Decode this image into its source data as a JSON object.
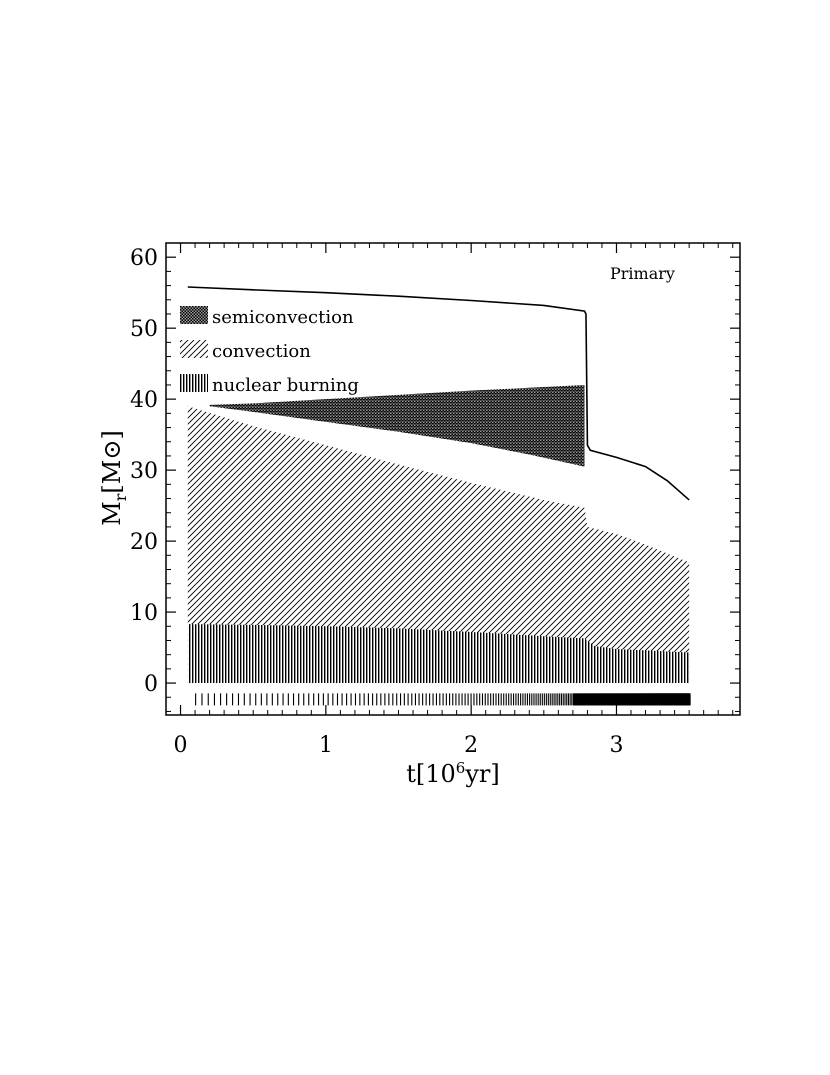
{
  "chart_data": {
    "type": "area",
    "panel_label": "Primary",
    "xlabel": {
      "base": "t[10",
      "sup": "6",
      "tail": "yr]"
    },
    "ylabel": {
      "base": "M",
      "sub": "r",
      "tail": "[M⊙]"
    },
    "xlim": [
      -0.1,
      3.85
    ],
    "ylim": [
      -4.5,
      62
    ],
    "xticks": [
      0,
      1,
      2,
      3
    ],
    "xtick_labels": [
      "0",
      "1",
      "2",
      "3"
    ],
    "yticks": [
      0,
      10,
      20,
      30,
      40,
      50,
      60
    ],
    "ytick_labels": [
      "0",
      "10",
      "20",
      "30",
      "40",
      "50",
      "60"
    ],
    "grid": false,
    "legend": {
      "placement": "top-left",
      "entries": [
        {
          "label": "semiconvection",
          "pattern": "dense-dots"
        },
        {
          "label": "convection",
          "pattern": "diagonal-hatch"
        },
        {
          "label": "nuclear burning",
          "pattern": "vertical-lines"
        }
      ]
    },
    "series": [
      {
        "key": "total_mass",
        "style": "line",
        "x": [
          0.05,
          0.5,
          1.0,
          1.5,
          2.0,
          2.5,
          2.78,
          2.79,
          2.8,
          2.82,
          3.0,
          3.2,
          3.35,
          3.5
        ],
        "y": [
          55.8,
          55.4,
          55.0,
          54.5,
          53.9,
          53.2,
          52.4,
          52.0,
          33.5,
          32.8,
          31.8,
          30.5,
          28.5,
          25.8
        ]
      },
      {
        "key": "convective_core",
        "style": "diagonal-hatch",
        "x": [
          0.05,
          0.5,
          1.0,
          1.5,
          2.0,
          2.5,
          2.78,
          2.8,
          3.0,
          3.2,
          3.5
        ],
        "y_top": [
          39.0,
          36.2,
          33.5,
          30.8,
          28.2,
          25.8,
          24.7,
          22.0,
          21.0,
          19.5,
          17.0
        ],
        "y_bottom": [
          0,
          0,
          0,
          0,
          0,
          0,
          0,
          0,
          0,
          0,
          0
        ]
      },
      {
        "key": "semiconvection",
        "style": "dense-dots",
        "x": [
          0.2,
          0.5,
          1.0,
          1.5,
          2.0,
          2.4,
          2.78
        ],
        "y_top": [
          39.2,
          39.4,
          40.0,
          40.6,
          41.2,
          41.6,
          42.0
        ],
        "y_bottom": [
          39.0,
          38.2,
          36.8,
          35.4,
          33.8,
          32.2,
          30.5
        ]
      },
      {
        "key": "nuclear_burning_core",
        "style": "vertical-lines",
        "x": [
          0.05,
          0.5,
          1.0,
          1.5,
          2.0,
          2.5,
          2.78,
          2.85,
          3.0,
          3.2,
          3.5
        ],
        "y_top": [
          8.3,
          8.2,
          8.0,
          7.7,
          7.2,
          6.6,
          6.3,
          5.2,
          4.8,
          4.6,
          4.3
        ],
        "y_bottom": [
          0,
          0,
          0,
          0,
          0,
          0,
          0,
          0,
          0,
          0,
          0
        ]
      },
      {
        "key": "burning_timeline",
        "style": "tick-strip",
        "x_start": 0.1,
        "x_end": 3.5,
        "y": -2.3
      }
    ]
  }
}
